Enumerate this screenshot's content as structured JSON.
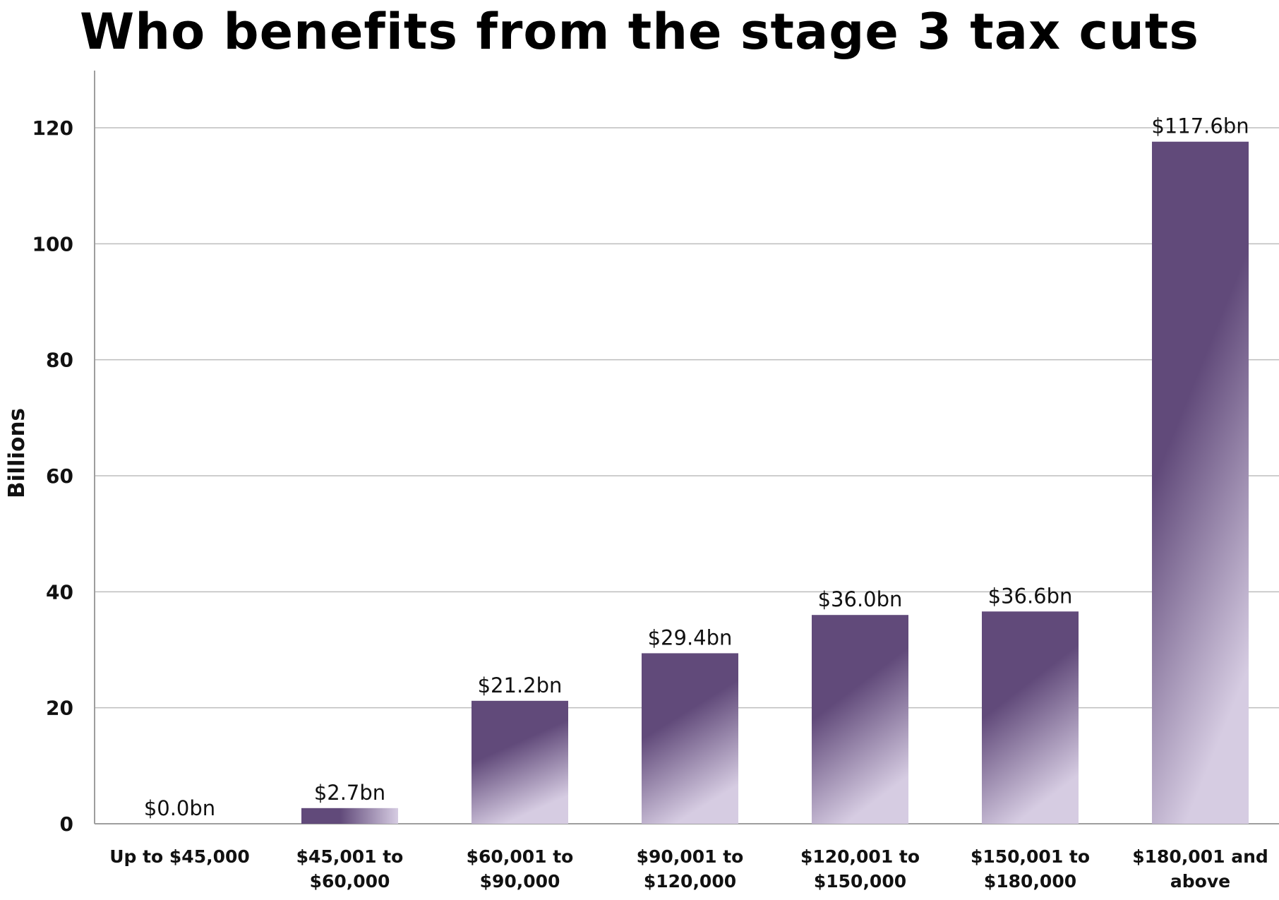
{
  "chart_data": {
    "type": "bar",
    "title": "Who benefits from the stage 3 tax cuts",
    "ylabel": "Billions",
    "xlabel": "",
    "ylim": [
      0,
      130
    ],
    "yticks": [
      0,
      20,
      40,
      60,
      80,
      100,
      120
    ],
    "grid": true,
    "categories": [
      [
        "Up to $45,000"
      ],
      [
        "$45,001 to",
        "$60,000"
      ],
      [
        "$60,001 to",
        "$90,000"
      ],
      [
        "$90,001 to",
        "$120,000"
      ],
      [
        "$120,001 to",
        "$150,000"
      ],
      [
        "$150,001 to",
        "$180,000"
      ],
      [
        "$180,001 and",
        "above"
      ]
    ],
    "values": [
      0.0,
      2.7,
      21.2,
      29.4,
      36.0,
      36.6,
      117.6
    ],
    "data_labels": [
      "$0.0bn",
      "$2.7bn",
      "$21.2bn",
      "$29.4bn",
      "$36.0bn",
      "$36.6bn",
      "$117.6bn"
    ],
    "colors": {
      "bar_dark": "#614a7a",
      "bar_light": "#d6cce2",
      "grid": "#bdbdbd",
      "axis": "#9e9e9e"
    }
  }
}
